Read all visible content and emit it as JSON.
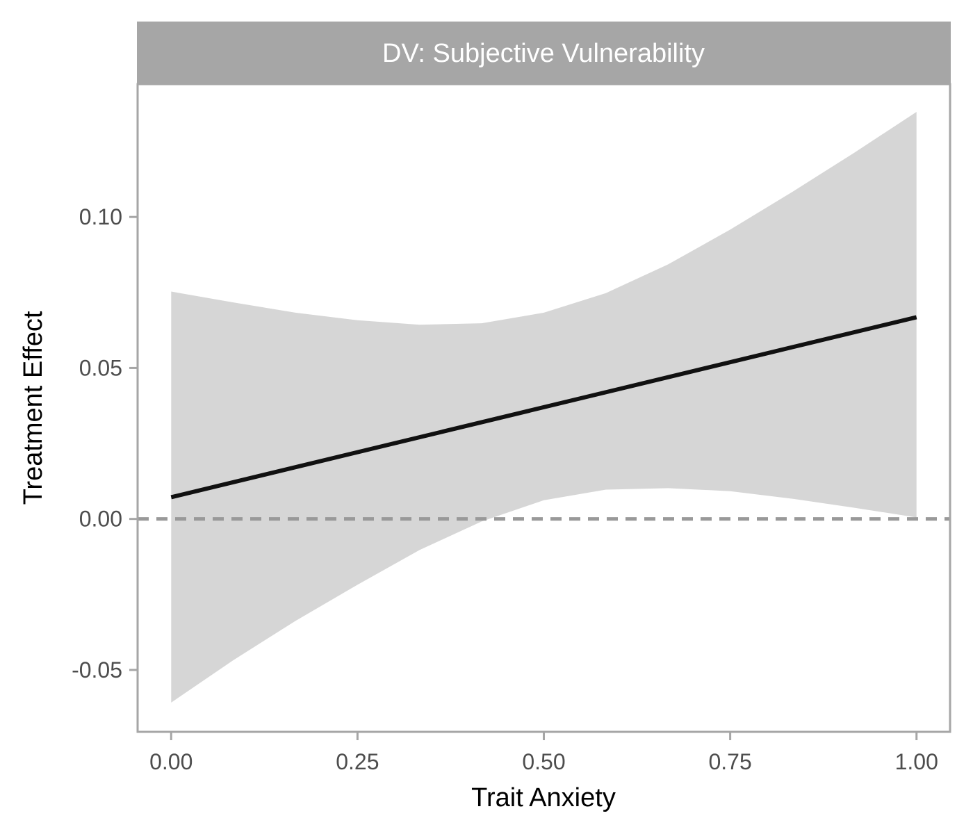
{
  "chart_data": {
    "type": "line",
    "facet_label": "DV: Subjective Vulnerability",
    "xlabel": "Trait Anxiety",
    "ylabel": "Treatment Effect",
    "xlim": [
      -0.045,
      1.045
    ],
    "ylim": [
      -0.0705,
      0.144
    ],
    "x_ticks": [
      0,
      0.25,
      0.5,
      0.75,
      1
    ],
    "x_tick_labels": [
      "0.00",
      "0.25",
      "0.50",
      "0.75",
      "1.00"
    ],
    "y_ticks": [
      -0.05,
      0,
      0.05,
      0.1
    ],
    "y_tick_labels": [
      "-0.05",
      "0.00",
      "0.05",
      "0.10"
    ],
    "reference_line": {
      "y": 0,
      "style": "dashed"
    },
    "series": [
      {
        "x": [
          0,
          1
        ],
        "y": [
          0.0072,
          0.0668
        ]
      }
    ],
    "ribbon": {
      "x": [
        0,
        0.0833,
        0.1667,
        0.25,
        0.3333,
        0.4167,
        0.5,
        0.5833,
        0.6667,
        0.75,
        0.8333,
        0.9167,
        1
      ],
      "upper": [
        0.0753,
        0.0717,
        0.0683,
        0.0658,
        0.0643,
        0.0648,
        0.0683,
        0.0748,
        0.0843,
        0.0958,
        0.1083,
        0.1213,
        0.1348
      ],
      "lower": [
        -0.0608,
        -0.0468,
        -0.0338,
        -0.0218,
        -0.0103,
        -0.0008,
        0.0062,
        0.0097,
        0.0102,
        0.0092,
        0.0067,
        0.0037,
        0.0005
      ]
    },
    "grid": false,
    "colors": {
      "line": "#111111",
      "ribbon": "#d6d6d6",
      "reference_line": "#999999",
      "strip_bg": "#a6a6a6",
      "panel_border": "#a6a6a6",
      "tick": "#a6a6a6"
    }
  }
}
